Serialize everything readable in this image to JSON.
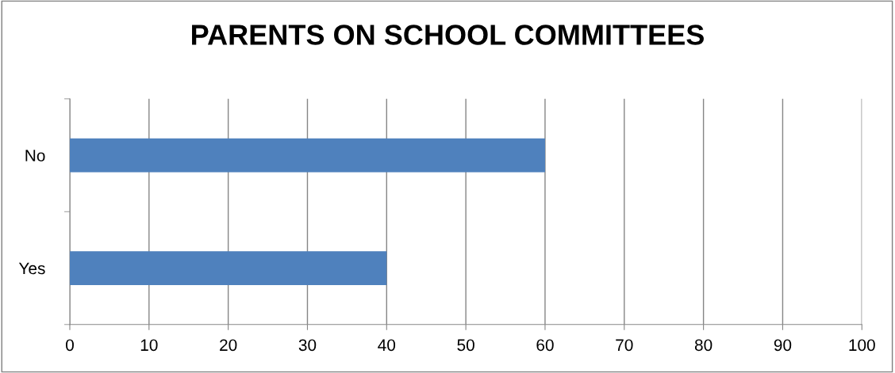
{
  "chart_data": {
    "type": "bar",
    "orientation": "horizontal",
    "title": "PARENTS ON SCHOOL COMMITTEES",
    "categories": [
      "No",
      "Yes"
    ],
    "values": [
      60,
      40
    ],
    "color": "#4f81bd",
    "xlim": [
      0,
      100
    ],
    "xticks": [
      0,
      10,
      20,
      30,
      40,
      50,
      60,
      70,
      80,
      90,
      100
    ],
    "grid": "x"
  }
}
